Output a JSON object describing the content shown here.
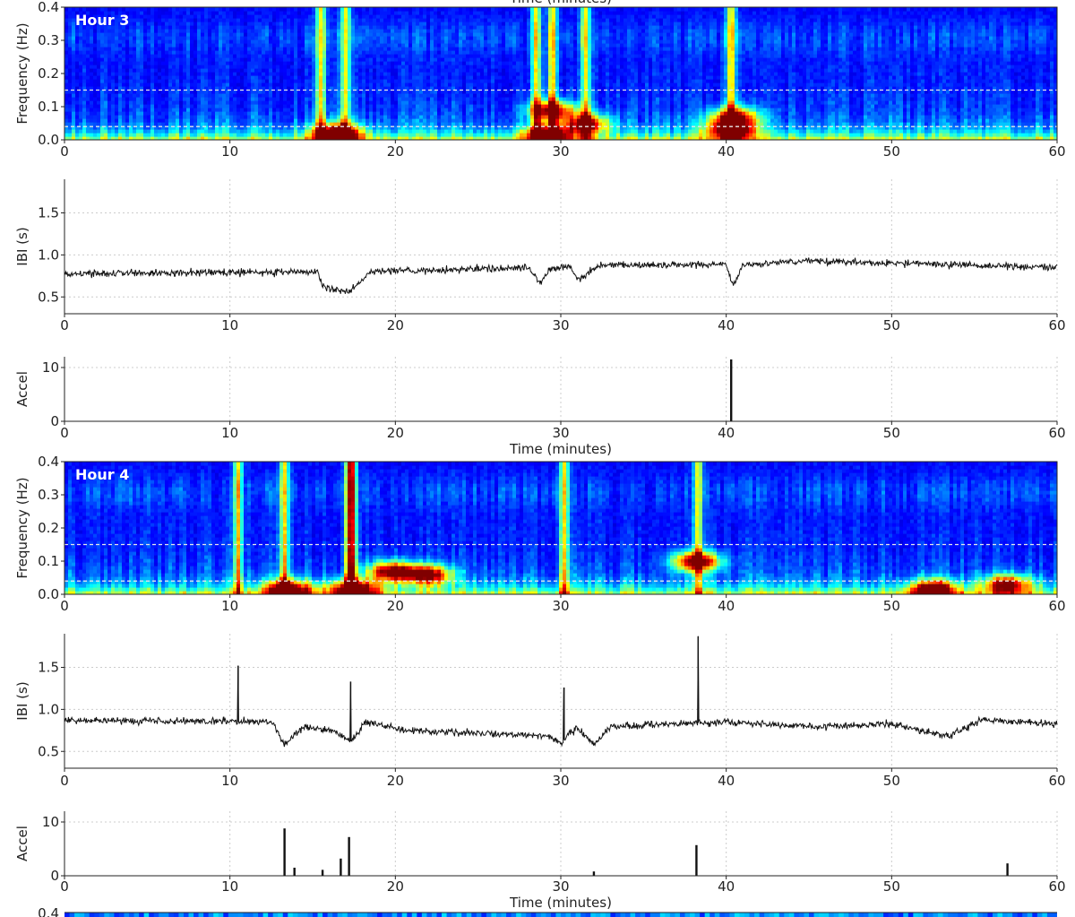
{
  "colors": {
    "axis": "#222222",
    "grid": "#cccccc",
    "trace": "#111111",
    "band_line": "#e8e8e8"
  },
  "chart_data": [
    {
      "type": "heatmap",
      "panel_label": "Hour 3",
      "top_title": "Time (minutes)",
      "ylabel": "Frequency (Hz)",
      "xlabel": "",
      "xlim": [
        0,
        60
      ],
      "ylim": [
        0.0,
        0.4
      ],
      "xticks": [
        "0",
        "10",
        "20",
        "30",
        "40",
        "50",
        "60"
      ],
      "yticks": [
        "0.0",
        "0.1",
        "0.2",
        "0.3",
        "0.4"
      ],
      "colormap": "jet",
      "band_lines_hz": [
        0.04,
        0.15
      ],
      "bursts_min": [
        15.5,
        17,
        28.5,
        29.5,
        31.5,
        40.3
      ],
      "hot_spots": [
        {
          "t": 16.5,
          "f": 0.02,
          "power": 0.95
        },
        {
          "t": 29.2,
          "f": 0.015,
          "power": 0.95
        },
        {
          "t": 29.5,
          "f": 0.09,
          "power": 0.8
        },
        {
          "t": 31.5,
          "f": 0.05,
          "power": 0.75
        },
        {
          "t": 40.3,
          "f": 0.03,
          "power": 0.95
        },
        {
          "t": 40.5,
          "f": 0.07,
          "power": 0.8
        }
      ]
    },
    {
      "type": "line",
      "ylabel": "IBI (s)",
      "xlim": [
        0,
        60
      ],
      "ylim": [
        0.3,
        1.9
      ],
      "xticks": [
        "0",
        "10",
        "20",
        "30",
        "40",
        "50",
        "60"
      ],
      "yticks": [
        "0.5",
        "1.0",
        "1.5"
      ],
      "grid": true,
      "baseline": [
        [
          0,
          0.78
        ],
        [
          15.3,
          0.8
        ],
        [
          15.6,
          0.62
        ],
        [
          17.2,
          0.55
        ],
        [
          18.5,
          0.8
        ],
        [
          28.0,
          0.85
        ],
        [
          28.8,
          0.68
        ],
        [
          29.3,
          0.82
        ],
        [
          30.5,
          0.88
        ],
        [
          31.0,
          0.7
        ],
        [
          31.6,
          0.78
        ],
        [
          32.3,
          0.88
        ],
        [
          40.0,
          0.88
        ],
        [
          40.4,
          0.62
        ],
        [
          41.0,
          0.88
        ],
        [
          45.0,
          0.93
        ],
        [
          60,
          0.85
        ]
      ],
      "spikes": []
    },
    {
      "type": "bar",
      "ylabel": "Accel",
      "xlabel": "Time (minutes)",
      "xlim": [
        0,
        60
      ],
      "ylim": [
        0,
        12
      ],
      "xticks": [
        "0",
        "10",
        "20",
        "30",
        "40",
        "50",
        "60"
      ],
      "yticks": [
        "0",
        "10"
      ],
      "grid": true,
      "events": [
        {
          "t": 40.3,
          "value": 11.5
        }
      ]
    },
    {
      "type": "heatmap",
      "panel_label": "Hour 4",
      "ylabel": "Frequency (Hz)",
      "xlim": [
        0,
        60
      ],
      "ylim": [
        0.0,
        0.4
      ],
      "xticks": [
        "0",
        "10",
        "20",
        "30",
        "40",
        "50",
        "60"
      ],
      "yticks": [
        "0.0",
        "0.1",
        "0.2",
        "0.3",
        "0.4"
      ],
      "colormap": "jet",
      "band_lines_hz": [
        0.04,
        0.15
      ],
      "bursts_min": [
        10.5,
        13.3,
        17.2,
        17.4,
        30.2,
        38.3
      ],
      "hot_spots": [
        {
          "t": 13.5,
          "f": 0.015,
          "power": 0.9
        },
        {
          "t": 17.5,
          "f": 0.015,
          "power": 0.95
        },
        {
          "t": 19.8,
          "f": 0.07,
          "power": 0.9
        },
        {
          "t": 22.0,
          "f": 0.06,
          "power": 0.85
        },
        {
          "t": 38.2,
          "f": 0.1,
          "power": 0.9
        },
        {
          "t": 52.5,
          "f": 0.015,
          "power": 0.9
        },
        {
          "t": 57.0,
          "f": 0.03,
          "power": 0.8
        }
      ]
    },
    {
      "type": "line",
      "ylabel": "IBI (s)",
      "xlim": [
        0,
        60
      ],
      "ylim": [
        0.3,
        1.9
      ],
      "xticks": [
        "0",
        "10",
        "20",
        "30",
        "40",
        "50",
        "60"
      ],
      "yticks": [
        "0.5",
        "1.0",
        "1.5"
      ],
      "grid": true,
      "baseline": [
        [
          0,
          0.87
        ],
        [
          12.5,
          0.85
        ],
        [
          13.3,
          0.58
        ],
        [
          14.5,
          0.8
        ],
        [
          16.5,
          0.72
        ],
        [
          17.3,
          0.62
        ],
        [
          18.2,
          0.85
        ],
        [
          20.5,
          0.75
        ],
        [
          25.0,
          0.72
        ],
        [
          29.3,
          0.68
        ],
        [
          30.0,
          0.6
        ],
        [
          31.0,
          0.78
        ],
        [
          32.0,
          0.58
        ],
        [
          33.0,
          0.8
        ],
        [
          40.0,
          0.85
        ],
        [
          45.0,
          0.8
        ],
        [
          50.0,
          0.82
        ],
        [
          53.5,
          0.68
        ],
        [
          55.5,
          0.88
        ],
        [
          60,
          0.82
        ]
      ],
      "spikes": [
        {
          "t": 10.5,
          "value": 1.52
        },
        {
          "t": 17.3,
          "value": 1.33
        },
        {
          "t": 30.2,
          "value": 1.26
        },
        {
          "t": 38.3,
          "value": 1.87
        }
      ]
    },
    {
      "type": "bar",
      "ylabel": "Accel",
      "xlabel": "Time (minutes)",
      "xlim": [
        0,
        60
      ],
      "ylim": [
        0,
        12
      ],
      "xticks": [
        "0",
        "10",
        "20",
        "30",
        "40",
        "50",
        "60"
      ],
      "yticks": [
        "0",
        "10"
      ],
      "grid": true,
      "events": [
        {
          "t": 13.3,
          "value": 8.8
        },
        {
          "t": 13.9,
          "value": 1.5
        },
        {
          "t": 15.6,
          "value": 1.1
        },
        {
          "t": 16.7,
          "value": 3.2
        },
        {
          "t": 17.2,
          "value": 7.2
        },
        {
          "t": 32.0,
          "value": 0.8
        },
        {
          "t": 38.2,
          "value": 5.7
        },
        {
          "t": 57.0,
          "value": 2.3
        }
      ]
    },
    {
      "type": "heatmap",
      "panel_label": "",
      "yticks": [
        "0.4"
      ],
      "partial": true
    }
  ]
}
